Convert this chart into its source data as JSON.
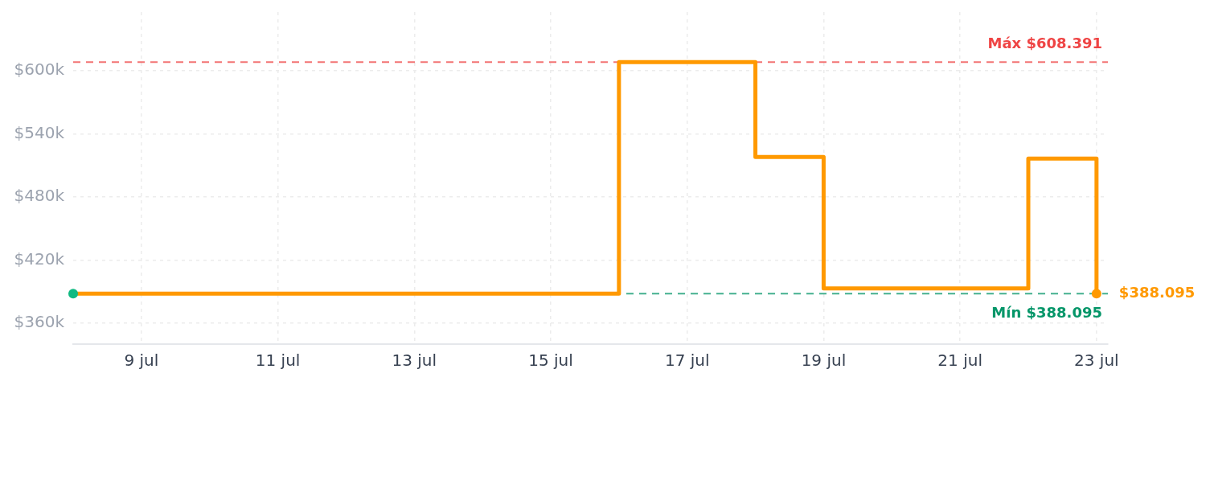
{
  "chart_data": {
    "type": "step",
    "x": [
      "--07-08",
      "--07-16",
      "--07-18",
      "--07-19",
      "--07-22",
      "--07-23"
    ],
    "series": [
      {
        "color": "#ff9900",
        "values": [
          388095,
          608391,
          518000,
          393000,
          516500,
          388095
        ],
        "marker": "none",
        "line_style": "solid"
      },
      {
        "type": "scatter",
        "x": [
          "--07-08"
        ],
        "values": [
          388095
        ],
        "color": "#10b981",
        "marker": "circle"
      },
      {
        "type": "scatter",
        "x": [
          "--07-23"
        ],
        "values": [
          388095
        ],
        "color": "#ff9900",
        "marker": "circle",
        "value_labels": [
          "$388.095"
        ]
      }
    ],
    "xlim": [
      "--07-08",
      "--07-23T04:00"
    ],
    "xticks": [
      {
        "value": "--07-09",
        "label": "9 jul"
      },
      {
        "value": "--07-11",
        "label": "11 jul"
      },
      {
        "value": "--07-13",
        "label": "13 jul"
      },
      {
        "value": "--07-15",
        "label": "15 jul"
      },
      {
        "value": "--07-17",
        "label": "17 jul"
      },
      {
        "value": "--07-19",
        "label": "19 jul"
      },
      {
        "value": "--07-21",
        "label": "21 jul"
      },
      {
        "value": "--07-23",
        "label": "23 jul"
      }
    ],
    "ylim": [
      340000,
      656000
    ],
    "yticks": [
      {
        "value": 360000,
        "label": "$360k"
      },
      {
        "value": 420000,
        "label": "$420k"
      },
      {
        "value": 480000,
        "label": "$480k"
      },
      {
        "value": 540000,
        "label": "$540k"
      },
      {
        "value": 600000,
        "label": "$600k"
      }
    ],
    "grid": true,
    "ref_lines": [
      {
        "axis": "y",
        "value": 608391,
        "label": "Máx $608.391",
        "color": "#ef4444",
        "line_style": "dashed"
      },
      {
        "axis": "y",
        "value": 388095,
        "label": "Mín $388.095",
        "color": "#059669",
        "line_style": "dashed"
      }
    ]
  }
}
